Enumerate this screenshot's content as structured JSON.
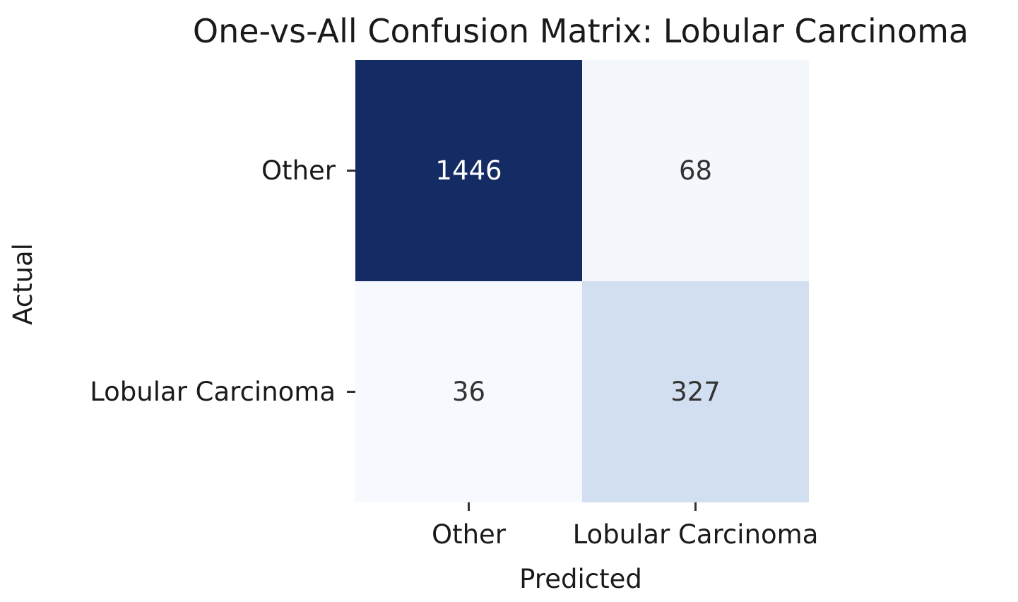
{
  "chart_data": {
    "type": "heatmap",
    "title": "One-vs-All Confusion Matrix: Lobular Carcinoma",
    "xlabel": "Predicted",
    "ylabel": "Actual",
    "x_categories": [
      "Other",
      "Lobular Carcinoma"
    ],
    "y_categories": [
      "Other",
      "Lobular Carcinoma"
    ],
    "values": [
      [
        1446,
        68
      ],
      [
        36,
        327
      ]
    ],
    "colormap": "Blues",
    "colorbar": false,
    "cell_colors": [
      [
        "#142c63",
        "#f4f8fd"
      ],
      [
        "#f6f9fe",
        "#d2dff0"
      ]
    ],
    "text_colors": [
      [
        "#ffffff",
        "#333333"
      ],
      [
        "#333333",
        "#333333"
      ]
    ]
  }
}
